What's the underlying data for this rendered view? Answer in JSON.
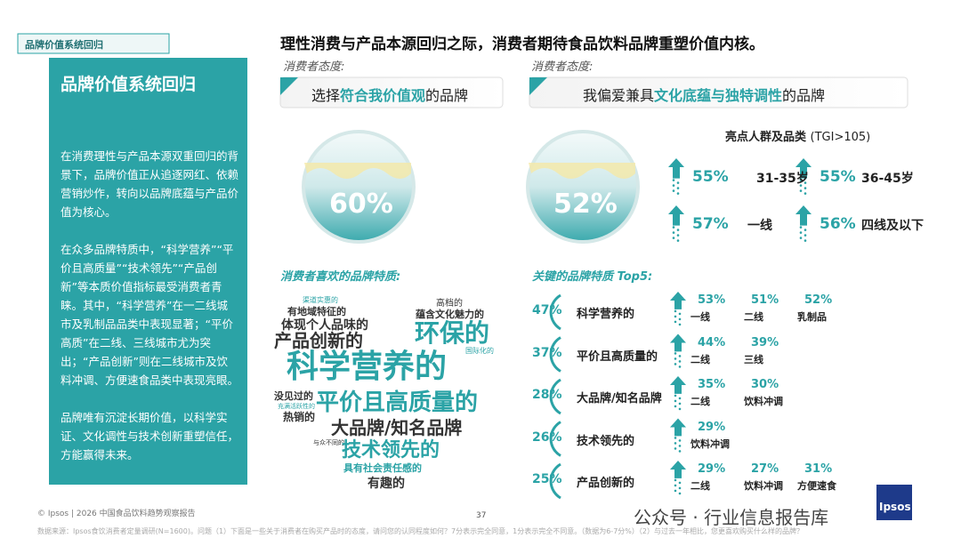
{
  "tag": "品牌价值系统回归",
  "sidebar": {
    "title": "品牌价值系统回归",
    "paragraphs": [
      "在消费理性与产品本源双重回归的背景下，品牌价值正从追逐网红、依赖营销炒作，转向以品牌底蕴与产品价值为核心。",
      "在众多品牌特质中，“科学营养”“平价且高质量”“技术领先”“产品创新”等本质价值指标最受消费者青睐。其中，“科学营养”在一二线城市及乳制品品类中表现显著；“平价高质”在二线、三线城市尤为突出；“产品创新”则在二线城市及饮料冲调、方便速食品类中表现亮眼。",
      "品牌唯有沉淀长期价值，以科学实证、文化调性与技术创新重塑信任，方能赢得未来。"
    ]
  },
  "headline": "理性消费与产品本源回归之际，消费者期待食品饮料品牌重塑价值内核。",
  "left_panel": {
    "attitude_label": "消费者态度:",
    "statement": [
      "选择",
      "符合我价值观",
      "的品牌"
    ],
    "percent": "60%"
  },
  "right_panel": {
    "attitude_label": "消费者态度:",
    "statement": [
      "我偏爱兼具",
      "文化底蕴与独特调性",
      "的品牌"
    ],
    "percent": "52%",
    "highlight_title": "亮点人群及品类",
    "highlight_note": "(TGI>105)",
    "items": [
      {
        "value": "55%",
        "label": "31-35岁"
      },
      {
        "value": "55%",
        "label": "36-45岁"
      },
      {
        "value": "57%",
        "label": "一线"
      },
      {
        "value": "56%",
        "label": "四线及以下"
      }
    ]
  },
  "word_cloud": {
    "title": "消费者喜欢的品牌特质:",
    "words": [
      "渠道实惠的",
      "有地域特征的",
      "体现个人品味的",
      "产品创新的",
      "科学营养的",
      "高档的",
      "蕴含文化魅力的",
      "环保的",
      "国际化的",
      "没见过的",
      "充满活跃性的",
      "热销的",
      "平价且高质量的",
      "大品牌/知名品牌",
      "与众不同的",
      "技术领先的",
      "具有社会责任感的",
      "有趣的"
    ]
  },
  "top5": {
    "title": "关键的品牌特质 Top5:",
    "rows": [
      {
        "percent": "47%",
        "label": "科学营养的",
        "subs": [
          {
            "value": "53%",
            "label": "一线"
          },
          {
            "value": "51%",
            "label": "二线"
          },
          {
            "value": "52%",
            "label": "乳制品"
          }
        ]
      },
      {
        "percent": "37%",
        "label": "平价且高质量的",
        "subs": [
          {
            "value": "44%",
            "label": "二线"
          },
          {
            "value": "39%",
            "label": "三线"
          }
        ]
      },
      {
        "percent": "28%",
        "label": "大品牌/知名品牌",
        "subs": [
          {
            "value": "35%",
            "label": "二线"
          },
          {
            "value": "30%",
            "label": "饮料冲调"
          }
        ]
      },
      {
        "percent": "26%",
        "label": "技术领先的",
        "subs": [
          {
            "value": "29%",
            "label": "饮料冲调"
          }
        ]
      },
      {
        "percent": "25%",
        "label": "产品创新的",
        "subs": [
          {
            "value": "29%",
            "label": "二线"
          },
          {
            "value": "27%",
            "label": "饮料冲调"
          },
          {
            "value": "31%",
            "label": "方便速食"
          }
        ]
      }
    ]
  },
  "footer": {
    "copyright": "© Ipsos | 2026 中国食品饮料趋势观察报告",
    "page": "37",
    "source": "数据来源：Ipsos食饮消费者定量调研(N=1600)。问题（1）下面是一些关于消费者在购买产品时的态度，请问您的认同程度如何？7分表示完全同意，1分表示完全不同意。（数据为6-7分%）（2）与过去一年相比，您更喜欢购买什么样的品牌？",
    "watermark": "公众号 · 行业信息报告库",
    "logo": "Ipsos"
  }
}
